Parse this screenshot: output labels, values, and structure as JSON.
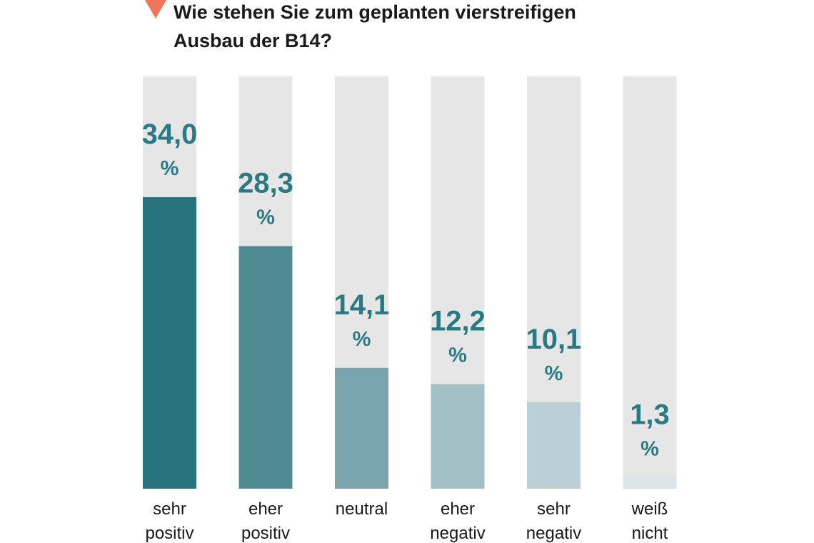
{
  "chart_data": {
    "type": "bar",
    "title_lines": [
      "Wie stehen Sie zum geplanten vierstreifigen",
      "Ausbau der B14?"
    ],
    "categories": [
      [
        "sehr",
        "positiv"
      ],
      [
        "eher",
        "positiv"
      ],
      [
        "neutral"
      ],
      [
        "eher",
        "negativ"
      ],
      [
        "sehr",
        "negativ"
      ],
      [
        "weiß",
        "nicht"
      ]
    ],
    "values": [
      34.0,
      28.3,
      14.1,
      12.2,
      10.1,
      1.3
    ],
    "value_labels": [
      "34,0",
      "28,3",
      "14,1",
      "12,2",
      "10,1",
      "1,3"
    ],
    "unit": "%",
    "ylim": [
      0,
      34
    ],
    "colors": [
      "#26737b",
      "#508b93",
      "#7aa5ae",
      "#a4c0c7",
      "#bad0d6",
      "#d8e5e9"
    ],
    "track_color": "#e6e6e6",
    "label_color": "#2a7a84",
    "marker_color": "#f0755a",
    "grid": false
  }
}
